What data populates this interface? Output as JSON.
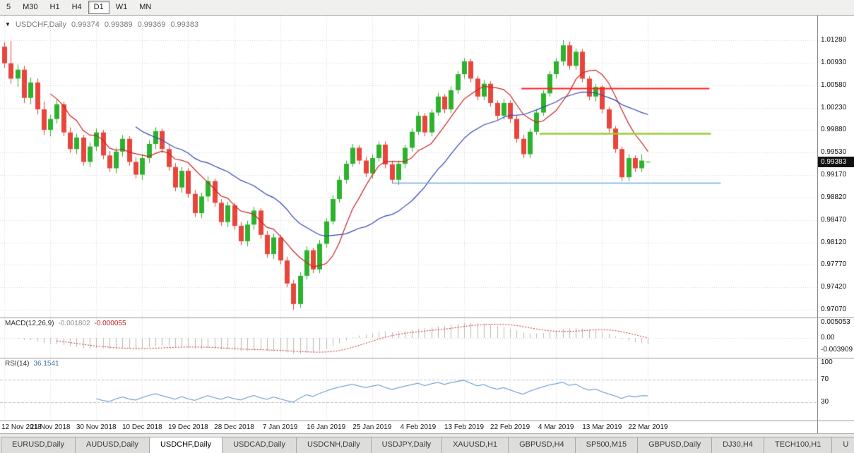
{
  "toolbar": {
    "timeframes": [
      {
        "label": "5",
        "active": false
      },
      {
        "label": "M30",
        "active": false
      },
      {
        "label": "H1",
        "active": false
      },
      {
        "label": "H4",
        "active": false
      },
      {
        "label": "D1",
        "active": true
      },
      {
        "label": "W1",
        "active": false
      },
      {
        "label": "MN",
        "active": false
      }
    ]
  },
  "chart": {
    "symbol_label": "USDCHF,Daily",
    "ohlc": {
      "open": "0.99374",
      "high": "0.99389",
      "low": "0.99369",
      "close": "0.99383"
    },
    "price_badge": "0.99383",
    "price_scale": [
      "1.01280",
      "1.00930",
      "1.00580",
      "1.00230",
      "0.99880",
      "0.99530",
      "0.99170",
      "0.98820",
      "0.98470",
      "0.98120",
      "0.97770",
      "0.97420",
      "0.97070"
    ],
    "colors": {
      "bull": "#2DB22D",
      "bear": "#E8453C",
      "ma_fast": "#CC2222",
      "ma_slow": "#3344BB",
      "grid": "#D7D7D7",
      "macd_hist": "#B8B8B8",
      "macd_signal": "#CC2222",
      "rsi_line": "#4F86C6",
      "level": "#C0C0C0",
      "badge_bg": "#111111",
      "badge_fg": "#FFFFFF"
    }
  },
  "chart_data": {
    "type": "candlestick",
    "symbol": "USDCHF",
    "timeframe": "Daily",
    "x_labels": [
      "12 Nov 2018",
      "21 Nov 2018",
      "30 Nov 2018",
      "10 Dec 2018",
      "19 Dec 2018",
      "28 Dec 2018",
      "7 Jan 2019",
      "16 Jan 2019",
      "25 Jan 2019",
      "4 Feb 2019",
      "13 Feb 2019",
      "22 Feb 2019",
      "4 Mar 2019",
      "13 Mar 2019",
      "22 Mar 2019"
    ],
    "label_every": 7,
    "price_axis": {
      "top": 1.0128,
      "bottom": 0.9707,
      "step": 0.0035
    },
    "overlays": [
      {
        "name": "ma-fast",
        "period": 8,
        "color": "#CC2222"
      },
      {
        "name": "ma-slow",
        "period": 21,
        "color": "#3344BB"
      }
    ],
    "hlines": [
      {
        "price": 1.0053,
        "x1": 0.638,
        "x2": 0.868,
        "color": "#FF2020",
        "width": 2
      },
      {
        "price": 0.9982,
        "x1": 0.66,
        "x2": 0.87,
        "color": "#9ACD32",
        "width": 2.5
      },
      {
        "price": 0.9905,
        "x1": 0.48,
        "x2": 0.882,
        "color": "#6AA9DC",
        "width": 1.5
      }
    ],
    "candles": [
      [
        1.0118,
        1.0125,
        1.0085,
        1.0092
      ],
      [
        1.0092,
        1.0127,
        1.006,
        1.0068
      ],
      [
        1.0068,
        1.009,
        1.0055,
        1.0082
      ],
      [
        1.0082,
        1.0088,
        1.003,
        1.0038
      ],
      [
        1.0038,
        1.007,
        1.0028,
        1.0062
      ],
      [
        1.0062,
        1.0068,
        1.0012,
        1.002
      ],
      [
        1.002,
        1.0032,
        0.998,
        0.9988
      ],
      [
        0.9988,
        1.0012,
        0.9978,
        1.0005
      ],
      [
        1.0005,
        1.0035,
        0.9998,
        1.0028
      ],
      [
        1.0028,
        1.0032,
        0.9978,
        0.9984
      ],
      [
        0.9984,
        0.9992,
        0.9952,
        0.9958
      ],
      [
        0.9958,
        0.9982,
        0.995,
        0.9976
      ],
      [
        0.9976,
        0.998,
        0.9932,
        0.9938
      ],
      [
        0.9938,
        0.9968,
        0.993,
        0.9962
      ],
      [
        0.9962,
        0.999,
        0.9955,
        0.9984
      ],
      [
        0.9984,
        0.9988,
        0.9942,
        0.9948
      ],
      [
        0.9948,
        0.9955,
        0.9922,
        0.9928
      ],
      [
        0.9928,
        0.996,
        0.992,
        0.9954
      ],
      [
        0.9954,
        0.998,
        0.9946,
        0.9974
      ],
      [
        0.9974,
        0.9978,
        0.9932,
        0.9938
      ],
      [
        0.9938,
        0.9945,
        0.9912,
        0.9918
      ],
      [
        0.9918,
        0.995,
        0.991,
        0.9944
      ],
      [
        0.9944,
        0.9972,
        0.9936,
        0.9966
      ],
      [
        0.9966,
        0.9992,
        0.9958,
        0.9986
      ],
      [
        0.9986,
        0.999,
        0.9952,
        0.9958
      ],
      [
        0.9958,
        0.9964,
        0.9924,
        0.993
      ],
      [
        0.993,
        0.9936,
        0.9892,
        0.9898
      ],
      [
        0.9898,
        0.993,
        0.989,
        0.9924
      ],
      [
        0.9924,
        0.9928,
        0.9882,
        0.9888
      ],
      [
        0.9888,
        0.9894,
        0.9852,
        0.9858
      ],
      [
        0.9858,
        0.989,
        0.985,
        0.9884
      ],
      [
        0.9884,
        0.9915,
        0.9876,
        0.9908
      ],
      [
        0.9908,
        0.9912,
        0.9868,
        0.9874
      ],
      [
        0.9874,
        0.988,
        0.9838,
        0.9844
      ],
      [
        0.9844,
        0.9876,
        0.9836,
        0.987
      ],
      [
        0.987,
        0.9874,
        0.9832,
        0.9838
      ],
      [
        0.9838,
        0.9844,
        0.9808,
        0.9814
      ],
      [
        0.9814,
        0.9846,
        0.9806,
        0.984
      ],
      [
        0.984,
        0.9868,
        0.9832,
        0.9862
      ],
      [
        0.9862,
        0.9866,
        0.9818,
        0.9824
      ],
      [
        0.9824,
        0.983,
        0.9788,
        0.9794
      ],
      [
        0.9794,
        0.9826,
        0.9786,
        0.982
      ],
      [
        0.982,
        0.9824,
        0.9778,
        0.9784
      ],
      [
        0.9784,
        0.979,
        0.9742,
        0.9748
      ],
      [
        0.9748,
        0.9754,
        0.9707,
        0.9716
      ],
      [
        0.9716,
        0.9766,
        0.971,
        0.976
      ],
      [
        0.976,
        0.9806,
        0.9754,
        0.98
      ],
      [
        0.98,
        0.9804,
        0.9764,
        0.977
      ],
      [
        0.977,
        0.9816,
        0.9764,
        0.981
      ],
      [
        0.981,
        0.985,
        0.9804,
        0.9845
      ],
      [
        0.9845,
        0.9886,
        0.984,
        0.988
      ],
      [
        0.988,
        0.9916,
        0.9874,
        0.991
      ],
      [
        0.991,
        0.994,
        0.9904,
        0.9935
      ],
      [
        0.9935,
        0.9966,
        0.993,
        0.996
      ],
      [
        0.996,
        0.9964,
        0.9934,
        0.994
      ],
      [
        0.994,
        0.9946,
        0.9914,
        0.992
      ],
      [
        0.992,
        0.995,
        0.9912,
        0.9944
      ],
      [
        0.9944,
        0.997,
        0.9938,
        0.9965
      ],
      [
        0.9965,
        0.997,
        0.9928,
        0.9934
      ],
      [
        0.9934,
        0.994,
        0.9904,
        0.991
      ],
      [
        0.991,
        0.994,
        0.9902,
        0.9935
      ],
      [
        0.9935,
        0.9965,
        0.9928,
        0.996
      ],
      [
        0.996,
        0.999,
        0.9954,
        0.9985
      ],
      [
        0.9985,
        1.0016,
        0.998,
        1.001
      ],
      [
        1.001,
        1.0014,
        0.9978,
        0.9984
      ],
      [
        0.9984,
        1.002,
        0.9978,
        1.0015
      ],
      [
        1.0015,
        1.0046,
        1.001,
        1.004
      ],
      [
        1.004,
        1.0044,
        1.0014,
        1.002
      ],
      [
        1.002,
        1.0056,
        1.0014,
        1.005
      ],
      [
        1.005,
        1.008,
        1.0044,
        1.0075
      ],
      [
        1.0075,
        1.01,
        1.0068,
        1.0095
      ],
      [
        1.0095,
        1.0099,
        1.0062,
        1.0068
      ],
      [
        1.0068,
        1.0072,
        1.0034,
        1.004
      ],
      [
        1.004,
        1.0066,
        1.0034,
        1.006
      ],
      [
        1.006,
        1.0064,
        1.0024,
        1.003
      ],
      [
        1.003,
        1.0034,
        1.0004,
        1.001
      ],
      [
        1.001,
        1.0036,
        1.0004,
        1.003
      ],
      [
        1.003,
        1.0034,
        0.9999,
        1.0005
      ],
      [
        1.0005,
        1.001,
        0.9968,
        0.9974
      ],
      [
        0.9974,
        0.998,
        0.9944,
        0.995
      ],
      [
        0.995,
        0.999,
        0.9944,
        0.9985
      ],
      [
        0.9985,
        1.002,
        0.998,
        1.0015
      ],
      [
        1.0015,
        1.005,
        1.001,
        1.0045
      ],
      [
        1.0045,
        1.008,
        1.004,
        1.0075
      ],
      [
        1.0075,
        1.01,
        1.0068,
        1.0095
      ],
      [
        1.0095,
        1.0128,
        1.0088,
        1.012
      ],
      [
        1.012,
        1.0126,
        1.0082,
        1.0088
      ],
      [
        1.0088,
        1.0115,
        1.0082,
        1.011
      ],
      [
        1.011,
        1.0114,
        1.0062,
        1.0068
      ],
      [
        1.0068,
        1.0072,
        1.0034,
        1.004
      ],
      [
        1.004,
        1.006,
        1.0032,
        1.0055
      ],
      [
        1.0055,
        1.0058,
        1.0014,
        1.002
      ],
      [
        1.002,
        1.0024,
        0.9984,
        0.999
      ],
      [
        0.999,
        0.9994,
        0.9952,
        0.9958
      ],
      [
        0.9958,
        0.9962,
        0.9908,
        0.9914
      ],
      [
        0.9914,
        0.995,
        0.9908,
        0.9944
      ],
      [
        0.9944,
        0.9948,
        0.9922,
        0.9928
      ],
      [
        0.9928,
        0.995,
        0.9922,
        0.994
      ],
      [
        0.99374,
        0.99389,
        0.99369,
        0.99383
      ]
    ]
  },
  "macd": {
    "name": "MACD(12,26,9)",
    "value_main": "-0.001802",
    "value_signal": "-0.000055",
    "params": [
      12,
      26,
      9
    ],
    "scale_labels": [
      {
        "text": "0.005053",
        "value": 0.005053
      },
      {
        "text": "0.00",
        "value": 0
      },
      {
        "text": "-0.003909",
        "value": -0.003909
      }
    ]
  },
  "rsi": {
    "name": "RSI(14)",
    "value": "36.1541",
    "period": 14,
    "levels": [
      70,
      30
    ],
    "scale_labels": [
      {
        "text": "100",
        "value": 100
      },
      {
        "text": "70",
        "value": 70
      },
      {
        "text": "30",
        "value": 30
      }
    ]
  },
  "tabs": [
    {
      "label": "EURUSD,Daily",
      "active": false
    },
    {
      "label": "AUDUSD,Daily",
      "active": false
    },
    {
      "label": "USDCHF,Daily",
      "active": true
    },
    {
      "label": "USDCAD,Daily",
      "active": false
    },
    {
      "label": "USDCNH,Daily",
      "active": false
    },
    {
      "label": "USDJPY,Daily",
      "active": false
    },
    {
      "label": "XAUUSD,H1",
      "active": false
    },
    {
      "label": "GBPUSD,H4",
      "active": false
    },
    {
      "label": "SP500,M15",
      "active": false
    },
    {
      "label": "GBPUSD,Daily",
      "active": false
    },
    {
      "label": "DJ30,H4",
      "active": false
    },
    {
      "label": "TECH100,H1",
      "active": false
    },
    {
      "label": "U",
      "active": false
    }
  ]
}
